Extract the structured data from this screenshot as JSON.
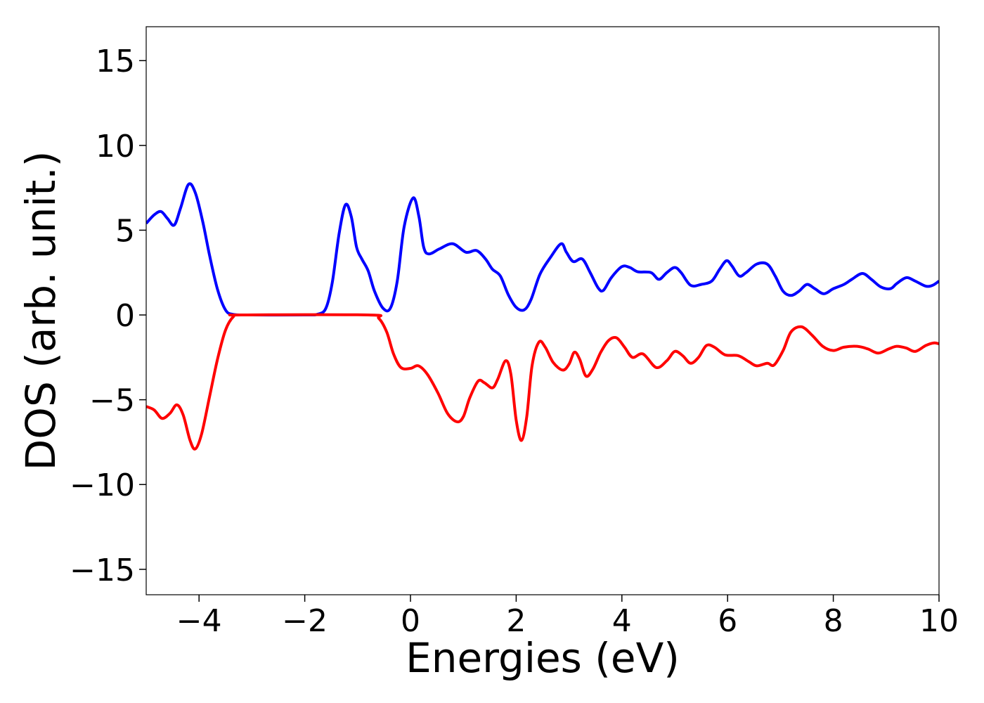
{
  "chart_data": {
    "type": "line",
    "xlabel": "Energies (eV)",
    "ylabel": "DOS (arb. unit.)",
    "xlim": [
      -5,
      10
    ],
    "ylim": [
      -16.5,
      17.0
    ],
    "grid": false,
    "x_ticks": [
      -4,
      -2,
      0,
      2,
      4,
      6,
      8,
      10
    ],
    "x_tick_labels": [
      "−4",
      "−2",
      "0",
      "2",
      "4",
      "6",
      "8",
      "10"
    ],
    "y_ticks": [
      15,
      10,
      5,
      0,
      -5,
      -10,
      -15
    ],
    "y_tick_labels": [
      "15",
      "10",
      "5",
      "0",
      "−5",
      "−10",
      "−15"
    ],
    "series": [
      {
        "color": "#0000ff",
        "points": [
          [
            -5.0,
            5.4
          ],
          [
            -4.85,
            5.9
          ],
          [
            -4.72,
            6.1
          ],
          [
            -4.6,
            5.7
          ],
          [
            -4.47,
            5.3
          ],
          [
            -4.35,
            6.3
          ],
          [
            -4.2,
            7.7
          ],
          [
            -4.07,
            7.2
          ],
          [
            -3.93,
            5.5
          ],
          [
            -3.8,
            3.5
          ],
          [
            -3.65,
            1.5
          ],
          [
            -3.5,
            0.3
          ],
          [
            -3.35,
            0.03
          ],
          [
            -3.0,
            0.0
          ],
          [
            -2.0,
            0.0
          ],
          [
            -1.75,
            0.05
          ],
          [
            -1.6,
            0.4
          ],
          [
            -1.48,
            1.9
          ],
          [
            -1.35,
            4.8
          ],
          [
            -1.23,
            6.5
          ],
          [
            -1.12,
            5.8
          ],
          [
            -1.02,
            4.0
          ],
          [
            -0.92,
            3.3
          ],
          [
            -0.8,
            2.6
          ],
          [
            -0.68,
            1.4
          ],
          [
            -0.52,
            0.4
          ],
          [
            -0.38,
            0.4
          ],
          [
            -0.25,
            2.0
          ],
          [
            -0.12,
            5.2
          ],
          [
            0.05,
            6.9
          ],
          [
            0.16,
            5.8
          ],
          [
            0.25,
            4.0
          ],
          [
            0.35,
            3.6
          ],
          [
            0.55,
            3.9
          ],
          [
            0.8,
            4.2
          ],
          [
            1.05,
            3.7
          ],
          [
            1.25,
            3.8
          ],
          [
            1.42,
            3.3
          ],
          [
            1.55,
            2.7
          ],
          [
            1.7,
            2.3
          ],
          [
            1.85,
            1.2
          ],
          [
            2.0,
            0.45
          ],
          [
            2.15,
            0.3
          ],
          [
            2.28,
            0.9
          ],
          [
            2.45,
            2.4
          ],
          [
            2.65,
            3.4
          ],
          [
            2.85,
            4.2
          ],
          [
            2.95,
            3.7
          ],
          [
            3.08,
            3.15
          ],
          [
            3.25,
            3.3
          ],
          [
            3.4,
            2.5
          ],
          [
            3.55,
            1.6
          ],
          [
            3.65,
            1.45
          ],
          [
            3.8,
            2.2
          ],
          [
            4.0,
            2.85
          ],
          [
            4.15,
            2.8
          ],
          [
            4.3,
            2.55
          ],
          [
            4.55,
            2.5
          ],
          [
            4.7,
            2.1
          ],
          [
            4.85,
            2.5
          ],
          [
            5.0,
            2.8
          ],
          [
            5.12,
            2.5
          ],
          [
            5.3,
            1.75
          ],
          [
            5.5,
            1.8
          ],
          [
            5.7,
            2.0
          ],
          [
            5.85,
            2.7
          ],
          [
            5.98,
            3.2
          ],
          [
            6.08,
            2.9
          ],
          [
            6.22,
            2.3
          ],
          [
            6.35,
            2.5
          ],
          [
            6.55,
            3.0
          ],
          [
            6.75,
            3.0
          ],
          [
            6.9,
            2.3
          ],
          [
            7.05,
            1.4
          ],
          [
            7.2,
            1.15
          ],
          [
            7.35,
            1.4
          ],
          [
            7.5,
            1.8
          ],
          [
            7.65,
            1.55
          ],
          [
            7.82,
            1.25
          ],
          [
            8.0,
            1.55
          ],
          [
            8.2,
            1.8
          ],
          [
            8.35,
            2.1
          ],
          [
            8.55,
            2.45
          ],
          [
            8.72,
            2.1
          ],
          [
            8.9,
            1.65
          ],
          [
            9.08,
            1.55
          ],
          [
            9.2,
            1.85
          ],
          [
            9.38,
            2.2
          ],
          [
            9.55,
            2.0
          ],
          [
            9.75,
            1.7
          ],
          [
            9.88,
            1.75
          ],
          [
            10.0,
            2.0
          ]
        ]
      },
      {
        "color": "#ff0000",
        "points": [
          [
            -5.0,
            -5.4
          ],
          [
            -4.85,
            -5.6
          ],
          [
            -4.7,
            -6.1
          ],
          [
            -4.55,
            -5.8
          ],
          [
            -4.42,
            -5.3
          ],
          [
            -4.3,
            -5.9
          ],
          [
            -4.17,
            -7.4
          ],
          [
            -4.07,
            -7.9
          ],
          [
            -3.95,
            -7.0
          ],
          [
            -3.8,
            -4.8
          ],
          [
            -3.65,
            -2.6
          ],
          [
            -3.5,
            -0.9
          ],
          [
            -3.35,
            -0.1
          ],
          [
            -3.2,
            0.0
          ],
          [
            -0.8,
            0.0
          ],
          [
            -0.6,
            -0.2
          ],
          [
            -0.45,
            -1.0
          ],
          [
            -0.32,
            -2.3
          ],
          [
            -0.18,
            -3.1
          ],
          [
            0.0,
            -3.15
          ],
          [
            0.15,
            -3.0
          ],
          [
            0.32,
            -3.5
          ],
          [
            0.52,
            -4.6
          ],
          [
            0.7,
            -5.8
          ],
          [
            0.88,
            -6.3
          ],
          [
            1.0,
            -6.0
          ],
          [
            1.12,
            -4.9
          ],
          [
            1.28,
            -3.9
          ],
          [
            1.4,
            -4.0
          ],
          [
            1.55,
            -4.3
          ],
          [
            1.65,
            -3.8
          ],
          [
            1.8,
            -2.7
          ],
          [
            1.9,
            -3.5
          ],
          [
            2.0,
            -6.2
          ],
          [
            2.1,
            -7.4
          ],
          [
            2.2,
            -6.0
          ],
          [
            2.3,
            -3.0
          ],
          [
            2.43,
            -1.6
          ],
          [
            2.55,
            -1.9
          ],
          [
            2.7,
            -2.8
          ],
          [
            2.88,
            -3.25
          ],
          [
            3.0,
            -2.9
          ],
          [
            3.1,
            -2.2
          ],
          [
            3.2,
            -2.6
          ],
          [
            3.32,
            -3.6
          ],
          [
            3.45,
            -3.2
          ],
          [
            3.6,
            -2.2
          ],
          [
            3.75,
            -1.5
          ],
          [
            3.9,
            -1.35
          ],
          [
            4.05,
            -1.9
          ],
          [
            4.2,
            -2.5
          ],
          [
            4.4,
            -2.3
          ],
          [
            4.65,
            -3.1
          ],
          [
            4.85,
            -2.7
          ],
          [
            5.0,
            -2.15
          ],
          [
            5.15,
            -2.4
          ],
          [
            5.3,
            -2.85
          ],
          [
            5.45,
            -2.5
          ],
          [
            5.6,
            -1.8
          ],
          [
            5.75,
            -1.9
          ],
          [
            5.95,
            -2.35
          ],
          [
            6.2,
            -2.4
          ],
          [
            6.4,
            -2.75
          ],
          [
            6.55,
            -3.0
          ],
          [
            6.75,
            -2.85
          ],
          [
            6.88,
            -2.95
          ],
          [
            7.05,
            -2.1
          ],
          [
            7.2,
            -1.0
          ],
          [
            7.4,
            -0.7
          ],
          [
            7.6,
            -1.2
          ],
          [
            7.8,
            -1.85
          ],
          [
            8.0,
            -2.1
          ],
          [
            8.2,
            -1.9
          ],
          [
            8.45,
            -1.85
          ],
          [
            8.65,
            -2.0
          ],
          [
            8.85,
            -2.25
          ],
          [
            9.05,
            -2.0
          ],
          [
            9.2,
            -1.85
          ],
          [
            9.38,
            -1.95
          ],
          [
            9.55,
            -2.15
          ],
          [
            9.75,
            -1.8
          ],
          [
            9.9,
            -1.65
          ],
          [
            10.0,
            -1.7
          ]
        ]
      }
    ]
  }
}
